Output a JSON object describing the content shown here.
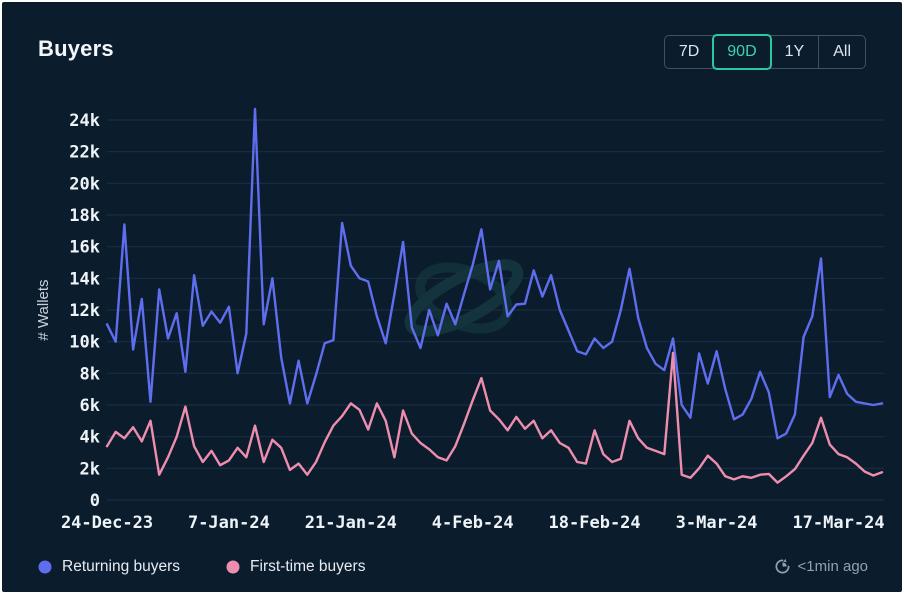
{
  "header": {
    "title": "Buyers",
    "range_buttons": [
      {
        "label": "7D",
        "selected": false
      },
      {
        "label": "90D",
        "selected": true
      },
      {
        "label": "1Y",
        "selected": false
      },
      {
        "label": "All",
        "selected": false
      }
    ],
    "accent_color": "#2cc7a0"
  },
  "chart_data": {
    "type": "line",
    "title": "Buyers",
    "ylabel": "# Wallets",
    "ylim": [
      0,
      24000
    ],
    "grid": true,
    "legend_position": "bottom-left",
    "y_tick_step": 2000,
    "y_tick_labels": [
      "0",
      "2k",
      "4k",
      "6k",
      "8k",
      "10k",
      "12k",
      "14k",
      "16k",
      "18k",
      "20k",
      "22k",
      "24k"
    ],
    "x_tick_labels": [
      "24-Dec-23",
      "7-Jan-24",
      "21-Jan-24",
      "4-Feb-24",
      "18-Feb-24",
      "3-Mar-24",
      "17-Mar-24"
    ],
    "x_tick_indices": [
      0,
      14,
      28,
      42,
      56,
      70,
      84
    ],
    "series": [
      {
        "name": "Returning buyers",
        "color": "#5f6eee",
        "values": [
          11100,
          10000,
          17400,
          9500,
          12700,
          6200,
          13300,
          10200,
          11800,
          8100,
          14200,
          11000,
          11900,
          11200,
          12200,
          8000,
          10500,
          24700,
          11100,
          14000,
          9000,
          6100,
          8800,
          6100,
          7900,
          9900,
          10100,
          17500,
          14800,
          14000,
          13800,
          11600,
          9900,
          13000,
          16300,
          10900,
          9600,
          12000,
          10400,
          12400,
          11100,
          13000,
          14850,
          17100,
          13300,
          15100,
          11600,
          12350,
          12400,
          14500,
          12850,
          14200,
          12000,
          10700,
          9400,
          9200,
          10200,
          9600,
          10000,
          12000,
          14600,
          11500,
          9600,
          8600,
          8200,
          10200,
          6000,
          5200,
          9250,
          7350,
          9400,
          7000,
          5100,
          5400,
          6400,
          8100,
          6800,
          3900,
          4200,
          5400,
          10300,
          11600,
          15250,
          6500,
          7900,
          6700,
          6200,
          6100,
          6000,
          6100
        ]
      },
      {
        "name": "First-time buyers",
        "color": "#ee8eae",
        "values": [
          3400,
          4300,
          3900,
          4600,
          3700,
          5000,
          1600,
          2700,
          4000,
          5900,
          3400,
          2400,
          3100,
          2200,
          2500,
          3300,
          2700,
          4700,
          2400,
          3800,
          3300,
          1900,
          2300,
          1600,
          2400,
          3650,
          4700,
          5300,
          6100,
          5700,
          4450,
          6100,
          5000,
          2700,
          5650,
          4200,
          3600,
          3200,
          2700,
          2500,
          3400,
          4800,
          6300,
          7700,
          5650,
          5100,
          4400,
          5250,
          4500,
          5000,
          3900,
          4400,
          3600,
          3300,
          2400,
          2300,
          4400,
          2900,
          2400,
          2600,
          5000,
          3900,
          3300,
          3100,
          2900,
          9300,
          1600,
          1400,
          2000,
          2800,
          2300,
          1500,
          1300,
          1500,
          1400,
          1600,
          1650,
          1100,
          1500,
          1950,
          2800,
          3600,
          5200,
          3500,
          2900,
          2700,
          2300,
          1800,
          1550,
          1750
        ]
      }
    ]
  },
  "footer": {
    "updated": "<1min ago"
  }
}
